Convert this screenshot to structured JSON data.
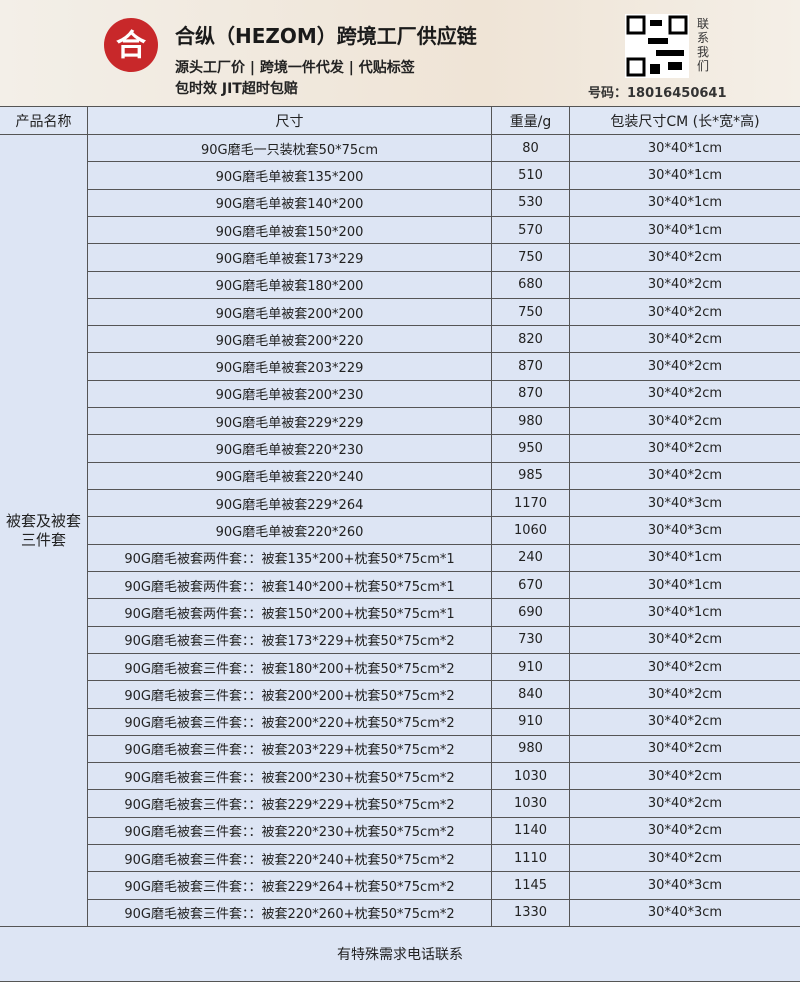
{
  "header": {
    "logo": "合",
    "title": "合纵（HEZOM）跨境工厂供应链",
    "subtitle_lines": [
      "源头工厂价 | 跨境一件代发 | 代贴标签",
      "包时效 JIT超时包赔"
    ],
    "contact_label": "联系我们",
    "phone": "号码：18016450641"
  },
  "table": {
    "columns": [
      "产品名称",
      "尺寸",
      "重量/g",
      "包装尺寸CM (长*宽*高)"
    ],
    "category": "被套及被套三件套",
    "rows": [
      [
        "90G磨毛一只装枕套50*75cm",
        80,
        "30*40*1cm"
      ],
      [
        "90G磨毛单被套135*200",
        510,
        "30*40*1cm"
      ],
      [
        "90G磨毛单被套140*200",
        530,
        "30*40*1cm"
      ],
      [
        "90G磨毛单被套150*200",
        570,
        "30*40*1cm"
      ],
      [
        "90G磨毛单被套173*229",
        750,
        "30*40*2cm"
      ],
      [
        "90G磨毛单被套180*200",
        680,
        "30*40*2cm"
      ],
      [
        "90G磨毛单被套200*200",
        750,
        "30*40*2cm"
      ],
      [
        "90G磨毛单被套200*220",
        820,
        "30*40*2cm"
      ],
      [
        "90G磨毛单被套203*229",
        870,
        "30*40*2cm"
      ],
      [
        "90G磨毛单被套200*230",
        870,
        "30*40*2cm"
      ],
      [
        "90G磨毛单被套229*229",
        980,
        "30*40*2cm"
      ],
      [
        "90G磨毛单被套220*230",
        950,
        "30*40*2cm"
      ],
      [
        "90G磨毛单被套220*240",
        985,
        "30*40*2cm"
      ],
      [
        "90G磨毛单被套229*264",
        1170,
        "30*40*3cm"
      ],
      [
        "90G磨毛单被套220*260",
        1060,
        "30*40*3cm"
      ],
      [
        "90G磨毛被套两件套：：被套135*200+枕套50*75cm*1",
        240,
        "30*40*1cm"
      ],
      [
        "90G磨毛被套两件套：：被套140*200+枕套50*75cm*1",
        670,
        "30*40*1cm"
      ],
      [
        "90G磨毛被套两件套：：被套150*200+枕套50*75cm*1",
        690,
        "30*40*1cm"
      ],
      [
        "90G磨毛被套三件套：：被套173*229+枕套50*75cm*2",
        730,
        "30*40*2cm"
      ],
      [
        "90G磨毛被套三件套：：被套180*200+枕套50*75cm*2",
        910,
        "30*40*2cm"
      ],
      [
        "90G磨毛被套三件套：：被套200*200+枕套50*75cm*2",
        840,
        "30*40*2cm"
      ],
      [
        "90G磨毛被套三件套：：被套200*220+枕套50*75cm*2",
        910,
        "30*40*2cm"
      ],
      [
        "90G磨毛被套三件套：：被套203*229+枕套50*75cm*2",
        980,
        "30*40*2cm"
      ],
      [
        "90G磨毛被套三件套：：被套200*230+枕套50*75cm*2",
        1030,
        "30*40*2cm"
      ],
      [
        "90G磨毛被套三件套：：被套229*229+枕套50*75cm*2",
        1030,
        "30*40*2cm"
      ],
      [
        "90G磨毛被套三件套：：被套220*230+枕套50*75cm*2",
        1140,
        "30*40*2cm"
      ],
      [
        "90G磨毛被套三件套：：被套220*240+枕套50*75cm*2",
        1110,
        "30*40*2cm"
      ],
      [
        "90G磨毛被套三件套：：被套229*264+枕套50*75cm*2",
        1145,
        "30*40*3cm"
      ],
      [
        "90G磨毛被套三件套：：被套220*260+枕套50*75cm*2",
        1330,
        "30*40*3cm"
      ]
    ]
  },
  "footer": "有特殊需求电话联系"
}
